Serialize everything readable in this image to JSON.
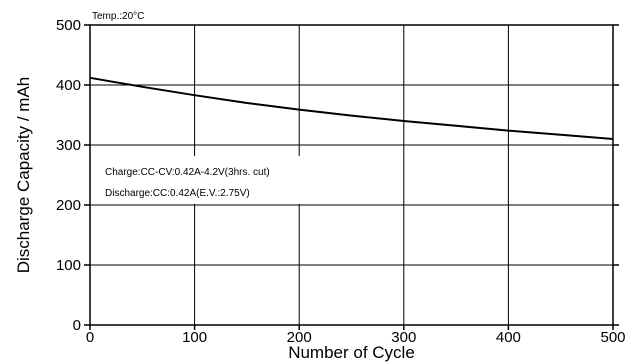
{
  "chart_data": {
    "type": "line",
    "title": "",
    "xlabel": "Number of Cycle",
    "ylabel": "Discharge Capacity / mAh",
    "xlim": [
      0,
      500
    ],
    "ylim": [
      0,
      500
    ],
    "x_ticks": [
      "0",
      "100",
      "200",
      "300",
      "400",
      "500"
    ],
    "y_ticks": [
      "0",
      "100",
      "200",
      "300",
      "400",
      "500"
    ],
    "grid": true,
    "annotations": {
      "temp": "Temp.:20°C",
      "charge": "Charge:CC-CV:0.42A-4.2V(3hrs. cut)",
      "discharge": "Discharge:CC:0.42A(E.V.:2.75V)"
    },
    "series": [
      {
        "x": [
          0,
          50,
          100,
          150,
          200,
          250,
          300,
          350,
          400,
          450,
          500
        ],
        "y": [
          412,
          397,
          383,
          370,
          359,
          349,
          340,
          332,
          324,
          317,
          310
        ]
      }
    ],
    "colors": {
      "line": "#000000",
      "grid": "#000000"
    }
  }
}
